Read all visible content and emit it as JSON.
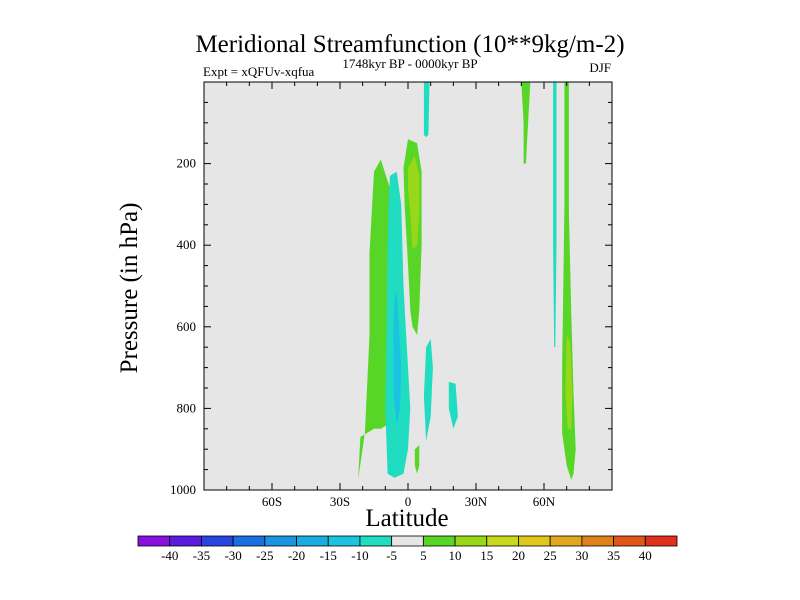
{
  "chart_data": {
    "type": "contour",
    "title": "Meridional Streamfunction (10**9kg/m-2)",
    "subtitle_left": "Expt = xQFUv-xqfua",
    "subtitle_center": "1748kyr BP - 0000kyr BP",
    "subtitle_right": "DJF",
    "xlabel": "Latitude",
    "ylabel": "Pressure (in hPa)",
    "xlim": [
      -90,
      90
    ],
    "ylim": [
      1000,
      0
    ],
    "x_major_ticks": [
      {
        "value": -60,
        "label": "60S"
      },
      {
        "value": -30,
        "label": "30S"
      },
      {
        "value": 0,
        "label": "0"
      },
      {
        "value": 30,
        "label": "30N"
      },
      {
        "value": 60,
        "label": "60N"
      }
    ],
    "x_minor_step": 10,
    "y_major_ticks": [
      {
        "value": 200,
        "label": "200"
      },
      {
        "value": 400,
        "label": "400"
      },
      {
        "value": 600,
        "label": "600"
      },
      {
        "value": 800,
        "label": "800"
      },
      {
        "value": 1000,
        "label": "1000"
      }
    ],
    "y_minor_step": 50,
    "background_color": "#e6e6e6",
    "colorbar": {
      "levels": [
        -40,
        -35,
        -30,
        -25,
        -20,
        -15,
        -10,
        -5,
        5,
        10,
        15,
        20,
        25,
        30,
        35,
        40
      ],
      "labels": [
        "-40",
        "-35",
        "-30",
        "-25",
        "-20",
        "-15",
        "-10",
        "-5",
        "5",
        "10",
        "15",
        "20",
        "25",
        "30",
        "35",
        "40"
      ],
      "colors": [
        "#8a10e0",
        "#5a1ae0",
        "#2a44e0",
        "#1a6fe0",
        "#1a94e0",
        "#1aaee0",
        "#1ac4e0",
        "#20dcc0",
        "#e6e6e6",
        "#58d628",
        "#98d818",
        "#c8d81a",
        "#e0c81a",
        "#e0a81a",
        "#e0801a",
        "#e0561a",
        "#e0301a"
      ]
    },
    "regions": [
      {
        "name": "nh-tropical-lobe-5-10",
        "level": "5 to 10",
        "color": "#58d628",
        "points": [
          [
            -22,
            975
          ],
          [
            -19,
            860
          ],
          [
            -17,
            620
          ],
          [
            -17,
            420
          ],
          [
            -16,
            320
          ],
          [
            -15,
            220
          ],
          [
            -12,
            190
          ],
          [
            -8,
            260
          ],
          [
            -8,
            500
          ],
          [
            -7.5,
            700
          ],
          [
            -8,
            800
          ],
          [
            -9,
            840
          ],
          [
            -12,
            850
          ],
          [
            -15,
            850
          ],
          [
            -18,
            860
          ],
          [
            -21,
            870
          ]
        ]
      },
      {
        "name": "sh-tropical-lobe-minus5-minus10",
        "level": "-5 to -10",
        "color": "#20dcc0",
        "points": [
          [
            -8,
            230
          ],
          [
            -5,
            220
          ],
          [
            -3,
            300
          ],
          [
            -2,
            500
          ],
          [
            -1,
            600
          ],
          [
            0,
            700
          ],
          [
            1,
            800
          ],
          [
            0,
            900
          ],
          [
            -2,
            960
          ],
          [
            -6,
            970
          ],
          [
            -9,
            960
          ],
          [
            -10,
            800
          ],
          [
            -9.5,
            600
          ],
          [
            -9,
            400
          ],
          [
            -8.5,
            300
          ]
        ]
      },
      {
        "name": "sh-tropical-core-minus10-minus15",
        "level": "-10 to -15",
        "color": "#1ac4e0",
        "points": [
          [
            -5,
            510
          ],
          [
            -4,
            600
          ],
          [
            -3,
            700
          ],
          [
            -3.5,
            800
          ],
          [
            -5,
            840
          ],
          [
            -6.5,
            760
          ],
          [
            -6.5,
            620
          ],
          [
            -6,
            540
          ]
        ]
      },
      {
        "name": "equatorial-ridge-5-10",
        "level": "5 to 10",
        "color": "#58d628",
        "points": [
          [
            -2,
            210
          ],
          [
            0,
            140
          ],
          [
            4,
            150
          ],
          [
            6,
            220
          ],
          [
            6,
            400
          ],
          [
            5,
            560
          ],
          [
            4,
            620
          ],
          [
            2,
            600
          ],
          [
            1,
            560
          ],
          [
            0.5,
            500
          ],
          [
            -0.5,
            400
          ],
          [
            -1.5,
            300
          ]
        ]
      },
      {
        "name": "equatorial-core-10-15",
        "level": "10 to 15",
        "color": "#98d818",
        "points": [
          [
            0,
            210
          ],
          [
            3,
            180
          ],
          [
            5,
            230
          ],
          [
            5,
            320
          ],
          [
            4,
            400
          ],
          [
            2,
            410
          ],
          [
            1,
            320
          ],
          [
            0,
            260
          ]
        ]
      },
      {
        "name": "upper-equatorial-tongue-minus5",
        "level": "-5 to -10",
        "color": "#20dcc0",
        "points": [
          [
            7,
            0
          ],
          [
            9.5,
            0
          ],
          [
            9,
            130
          ],
          [
            8,
            135
          ],
          [
            7,
            130
          ]
        ]
      },
      {
        "name": "mid-tropics-blob-minus5",
        "level": "-5 to -10",
        "color": "#20dcc0",
        "points": [
          [
            8,
            650
          ],
          [
            10,
            630
          ],
          [
            11,
            700
          ],
          [
            10,
            820
          ],
          [
            8,
            880
          ],
          [
            7,
            770
          ]
        ]
      },
      {
        "name": "subtropical-blob-minus5",
        "level": "-5 to -10",
        "color": "#20dcc0",
        "points": [
          [
            18,
            735
          ],
          [
            21,
            740
          ],
          [
            22,
            820
          ],
          [
            20,
            850
          ],
          [
            18,
            800
          ]
        ]
      },
      {
        "name": "equatorial-spot-5-10",
        "level": "5 to 10",
        "color": "#58d628",
        "points": [
          [
            3,
            900
          ],
          [
            5,
            890
          ],
          [
            5,
            940
          ],
          [
            4,
            960
          ],
          [
            3,
            940
          ]
        ]
      },
      {
        "name": "nh-upper-lobe-5-10",
        "level": "5 to 10",
        "color": "#58d628",
        "points": [
          [
            50,
            0
          ],
          [
            54,
            0
          ],
          [
            53,
            100
          ],
          [
            52,
            200
          ],
          [
            51,
            200
          ],
          [
            51,
            100
          ]
        ]
      },
      {
        "name": "nh-narrow-band-minus5",
        "level": "-5 to -10",
        "color": "#20dcc0",
        "points": [
          [
            64,
            0
          ],
          [
            65.5,
            0
          ],
          [
            65.5,
            400
          ],
          [
            65,
            650
          ],
          [
            64.5,
            650
          ],
          [
            64,
            400
          ]
        ]
      },
      {
        "name": "nh-midlat-band-5-10",
        "level": "5 to 10",
        "color": "#58d628",
        "points": [
          [
            69,
            0
          ],
          [
            71,
            0
          ],
          [
            71,
            320
          ],
          [
            72,
            560
          ],
          [
            73,
            760
          ],
          [
            74,
            900
          ],
          [
            73,
            960
          ],
          [
            72,
            975
          ],
          [
            70,
            940
          ],
          [
            68,
            860
          ],
          [
            68,
            700
          ],
          [
            68.5,
            500
          ],
          [
            69,
            300
          ]
        ]
      },
      {
        "name": "nh-midlat-core-10-15",
        "level": "10 to 15",
        "color": "#98d818",
        "points": [
          [
            70,
            620
          ],
          [
            71.5,
            640
          ],
          [
            72.5,
            760
          ],
          [
            72,
            850
          ],
          [
            70.5,
            850
          ],
          [
            69.5,
            760
          ]
        ]
      }
    ]
  }
}
